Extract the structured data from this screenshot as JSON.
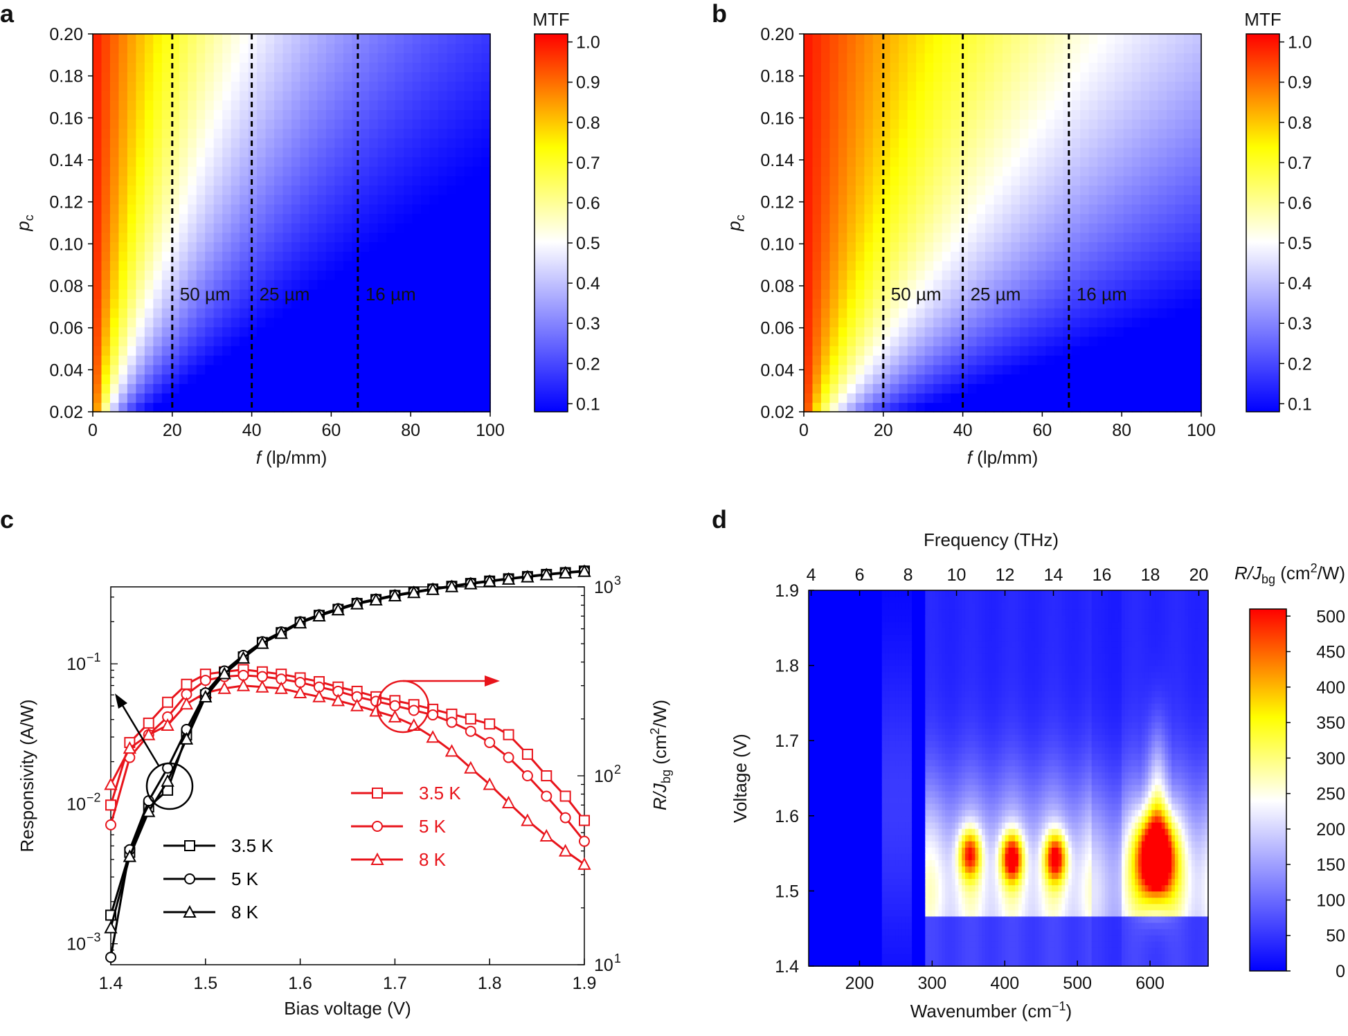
{
  "panels": {
    "a": "a",
    "b": "b",
    "c": "c",
    "d": "d"
  },
  "colors": {
    "mtf_scale": [
      "#0000ff",
      "#ffffff",
      "#ffff00",
      "#ff0000"
    ],
    "d_scale": [
      "#0000ff",
      "#ffffff",
      "#ffff00",
      "#ff0000"
    ],
    "black_series": "#000000",
    "red_series": "#e8141b"
  },
  "chart_data": [
    {
      "id": "a",
      "type": "heatmap",
      "title": "",
      "xlabel_var": "f",
      "xlabel_unit": " (lp/mm)",
      "ylabel_var": "p",
      "ylabel_sub": "c",
      "x_ticks": [
        "0",
        "20",
        "40",
        "60",
        "80",
        "100"
      ],
      "y_ticks": [
        "0.02",
        "0.04",
        "0.06",
        "0.08",
        "0.10",
        "0.12",
        "0.14",
        "0.16",
        "0.18",
        "0.20"
      ],
      "xlim": [
        0,
        100
      ],
      "ylim": [
        0.02,
        0.2
      ],
      "colorbar_title": "MTF",
      "colorbar_ticks": [
        "0.1",
        "0.2",
        "0.3",
        "0.4",
        "0.5",
        "0.6",
        "0.7",
        "0.8",
        "0.9",
        "1.0"
      ],
      "colorbar_range": [
        0.08,
        1.02
      ],
      "decay": 0.35,
      "dashed_lines": [
        {
          "x": 20,
          "label": "50 µm"
        },
        {
          "x": 40,
          "label": "25 µm"
        },
        {
          "x": 66.7,
          "label": "16 µm"
        }
      ]
    },
    {
      "id": "b",
      "type": "heatmap",
      "title": "",
      "xlabel_var": "f",
      "xlabel_unit": " (lp/mm)",
      "ylabel_var": "p",
      "ylabel_sub": "c",
      "x_ticks": [
        "0",
        "20",
        "40",
        "60",
        "80",
        "100"
      ],
      "y_ticks": [
        "0.02",
        "0.04",
        "0.06",
        "0.08",
        "0.10",
        "0.12",
        "0.14",
        "0.16",
        "0.18",
        "0.20"
      ],
      "xlim": [
        0,
        100
      ],
      "ylim": [
        0.02,
        0.2
      ],
      "colorbar_title": "MTF",
      "colorbar_ticks": [
        "0.1",
        "0.2",
        "0.3",
        "0.4",
        "0.5",
        "0.6",
        "0.7",
        "0.8",
        "0.9",
        "1.0"
      ],
      "colorbar_range": [
        0.08,
        1.02
      ],
      "decay": 0.18,
      "dashed_lines": [
        {
          "x": 20,
          "label": "50 µm"
        },
        {
          "x": 40,
          "label": "25 µm"
        },
        {
          "x": 66.7,
          "label": "16 µm"
        }
      ]
    },
    {
      "id": "c",
      "type": "line",
      "xlabel": "Bias voltage (V)",
      "ylabel": "Responsivity (A/W)",
      "ylabel2_var": "R/J",
      "ylabel2_sub": "bg",
      "ylabel2_unit": " (cm",
      "ylabel2_sup": "2",
      "ylabel2_end": "/W)",
      "x_ticks": [
        "1.4",
        "1.5",
        "1.6",
        "1.7",
        "1.8",
        "1.9"
      ],
      "xlim": [
        1.4,
        1.9
      ],
      "y_log_range": [
        -3.15,
        -0.45
      ],
      "y_ticks": [
        {
          "value": -3,
          "base": "10",
          "exp": "−3"
        },
        {
          "value": -2,
          "base": "10",
          "exp": "−2"
        },
        {
          "value": -1,
          "base": "10",
          "exp": "−1"
        }
      ],
      "y2_log_range": [
        1,
        3
      ],
      "y2_ticks": [
        {
          "value": 1,
          "base": "10",
          "exp": "1"
        },
        {
          "value": 2,
          "base": "10",
          "exp": "2"
        },
        {
          "value": 3,
          "base": "10",
          "exp": "3"
        }
      ],
      "black_series": [
        {
          "name": "3.5 K",
          "marker": "square",
          "x": [
            1.4,
            1.42,
            1.44,
            1.46,
            1.48,
            1.5,
            1.52,
            1.54,
            1.56,
            1.58,
            1.6,
            1.62,
            1.64,
            1.66,
            1.68,
            1.7,
            1.72,
            1.74,
            1.76,
            1.78,
            1.8,
            1.82,
            1.84,
            1.86,
            1.88,
            1.9
          ],
          "y": [
            0.0016,
            0.0045,
            0.0095,
            0.0125,
            0.031,
            0.06,
            0.087,
            0.112,
            0.142,
            0.167,
            0.198,
            0.222,
            0.245,
            0.27,
            0.288,
            0.308,
            0.325,
            0.342,
            0.358,
            0.375,
            0.39,
            0.405,
            0.42,
            0.435,
            0.448,
            0.46
          ]
        },
        {
          "name": "5 K",
          "marker": "circle",
          "x": [
            1.4,
            1.42,
            1.44,
            1.46,
            1.48,
            1.5,
            1.52,
            1.54,
            1.56,
            1.58,
            1.6,
            1.62,
            1.64,
            1.66,
            1.68,
            1.7,
            1.72,
            1.74,
            1.76,
            1.78,
            1.8,
            1.82,
            1.84,
            1.86,
            1.88,
            1.9
          ],
          "y": [
            0.0008,
            0.0047,
            0.0105,
            0.018,
            0.034,
            0.062,
            0.089,
            0.115,
            0.144,
            0.169,
            0.2,
            0.224,
            0.248,
            0.272,
            0.29,
            0.31,
            0.327,
            0.344,
            0.36,
            0.377,
            0.392,
            0.407,
            0.422,
            0.437,
            0.45,
            0.462
          ]
        },
        {
          "name": "8 K",
          "marker": "triangle",
          "x": [
            1.4,
            1.42,
            1.44,
            1.46,
            1.48,
            1.5,
            1.52,
            1.54,
            1.56,
            1.58,
            1.6,
            1.62,
            1.64,
            1.66,
            1.68,
            1.7,
            1.72,
            1.74,
            1.76,
            1.78,
            1.8,
            1.82,
            1.84,
            1.86,
            1.88,
            1.9
          ],
          "y": [
            0.0013,
            0.0042,
            0.0088,
            0.0145,
            0.029,
            0.058,
            0.085,
            0.11,
            0.14,
            0.165,
            0.196,
            0.22,
            0.243,
            0.268,
            0.286,
            0.306,
            0.323,
            0.34,
            0.356,
            0.373,
            0.388,
            0.403,
            0.418,
            0.433,
            0.446,
            0.458
          ]
        }
      ],
      "red_series": [
        {
          "name": "3.5 K",
          "marker": "square",
          "x": [
            1.4,
            1.42,
            1.44,
            1.46,
            1.48,
            1.5,
            1.52,
            1.54,
            1.56,
            1.58,
            1.6,
            1.62,
            1.64,
            1.66,
            1.68,
            1.7,
            1.72,
            1.74,
            1.76,
            1.78,
            1.8,
            1.82,
            1.84,
            1.86,
            1.88,
            1.9
          ],
          "y": [
            70,
            150,
            190,
            245,
            305,
            345,
            355,
            365,
            355,
            345,
            330,
            315,
            295,
            280,
            262,
            250,
            238,
            225,
            212,
            200,
            188,
            165,
            130,
            100,
            78,
            58
          ]
        },
        {
          "name": "5 K",
          "marker": "circle",
          "x": [
            1.4,
            1.42,
            1.44,
            1.46,
            1.48,
            1.5,
            1.52,
            1.54,
            1.56,
            1.58,
            1.6,
            1.62,
            1.64,
            1.66,
            1.68,
            1.7,
            1.72,
            1.74,
            1.76,
            1.78,
            1.8,
            1.82,
            1.84,
            1.86,
            1.88,
            1.9
          ],
          "y": [
            55,
            125,
            165,
            205,
            270,
            320,
            335,
            340,
            335,
            325,
            312,
            295,
            280,
            262,
            248,
            235,
            222,
            210,
            192,
            172,
            150,
            125,
            100,
            78,
            60,
            45
          ]
        },
        {
          "name": "8 K",
          "marker": "triangle",
          "x": [
            1.4,
            1.42,
            1.44,
            1.46,
            1.48,
            1.5,
            1.52,
            1.54,
            1.56,
            1.58,
            1.6,
            1.62,
            1.64,
            1.66,
            1.68,
            1.7,
            1.72,
            1.74,
            1.76,
            1.78,
            1.8,
            1.82,
            1.84,
            1.86,
            1.88,
            1.9
          ],
          "y": [
            90,
            140,
            165,
            185,
            240,
            275,
            290,
            300,
            295,
            290,
            275,
            262,
            250,
            235,
            220,
            205,
            185,
            160,
            135,
            110,
            90,
            72,
            58,
            48,
            40,
            34
          ]
        }
      ]
    },
    {
      "id": "d",
      "type": "heatmap",
      "xlabel": "Wavenumber (cm",
      "xlabel_sup": "−1",
      "xlabel_end": ")",
      "x2label": "Frequency (THz)",
      "ylabel": "Voltage (V)",
      "x_ticks": [
        "200",
        "300",
        "400",
        "500",
        "600"
      ],
      "xlim": [
        130,
        680
      ],
      "x2_ticks": [
        "4",
        "6",
        "8",
        "10",
        "12",
        "14",
        "16",
        "18",
        "20"
      ],
      "ylim": [
        1.4,
        1.9
      ],
      "y_ticks": [
        "1.4",
        "1.5",
        "1.6",
        "1.7",
        "1.8",
        "1.9"
      ],
      "colorbar_title_var": "R/J",
      "colorbar_title_sub": "bg",
      "colorbar_title_unit": " (cm",
      "colorbar_title_sup": "2",
      "colorbar_title_end": "/W)",
      "colorbar_ticks": [
        "0",
        "50",
        "100",
        "150",
        "200",
        "250",
        "300",
        "350",
        "400",
        "450",
        "500"
      ],
      "colorbar_range": [
        0,
        510
      ],
      "hot_spots": [
        {
          "wavenumber": 352,
          "voltage": 1.55,
          "amplitude": 270
        },
        {
          "wavenumber": 410,
          "voltage": 1.545,
          "amplitude": 330
        },
        {
          "wavenumber": 470,
          "voltage": 1.545,
          "amplitude": 310
        },
        {
          "wavenumber": 608,
          "voltage": 1.545,
          "amplitude": 480
        }
      ]
    }
  ]
}
